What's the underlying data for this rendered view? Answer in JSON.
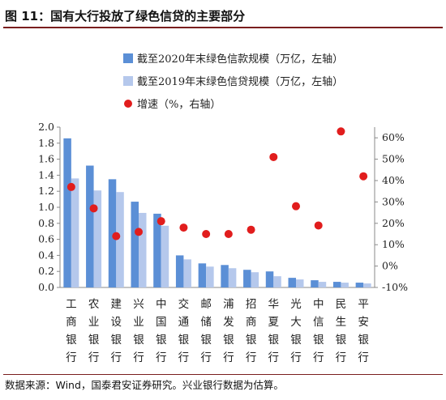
{
  "figure_title": "图 11：国有大行投放了绿色信贷的主要部分",
  "source_note": "数据来源：Wind，国泰君安证券研究。兴业银行数据为估算。",
  "chart_data": {
    "type": "bar+scatter",
    "categories": [
      "工商银行",
      "农业银行",
      "建设银行",
      "兴业银行",
      "中国银行",
      "交通银行",
      "邮储银行",
      "浦发银行",
      "招商银行",
      "华夏银行",
      "光大银行",
      "中信银行",
      "民生银行",
      "平安银行"
    ],
    "series": [
      {
        "name": "截至2020年末绿色信款规模（万亿，左轴）",
        "type": "bar",
        "axis": "left",
        "color": "#5b8fd6",
        "values": [
          1.86,
          1.52,
          1.35,
          1.07,
          0.92,
          0.4,
          0.3,
          0.28,
          0.22,
          0.2,
          0.12,
          0.09,
          0.07,
          0.06
        ]
      },
      {
        "name": "截至2019年末绿色信贷规模（万亿，左轴）",
        "type": "bar",
        "axis": "left",
        "color": "#b5c8ec",
        "values": [
          1.36,
          1.21,
          1.19,
          0.93,
          0.77,
          0.35,
          0.26,
          0.24,
          0.19,
          0.14,
          0.1,
          0.07,
          0.06,
          0.05
        ]
      },
      {
        "name": "增速（%，右轴）",
        "type": "scatter",
        "axis": "right",
        "color": "#e11d1d",
        "values": [
          37,
          27,
          14,
          16,
          21,
          18,
          15,
          15,
          17,
          51,
          28,
          19,
          63,
          42
        ]
      }
    ],
    "left_axis": {
      "min": 0,
      "max": 2.0,
      "ticks": [
        "0.0",
        "0.2",
        "0.4",
        "0.6",
        "0.8",
        "1.0",
        "1.2",
        "1.4",
        "1.6",
        "1.8",
        "2.0"
      ]
    },
    "right_axis": {
      "min": -10,
      "max": 65,
      "ticks": [
        "-10%",
        "0%",
        "10%",
        "20%",
        "30%",
        "40%",
        "50%",
        "60%"
      ]
    },
    "legend_position": "top-center",
    "grid": false
  }
}
